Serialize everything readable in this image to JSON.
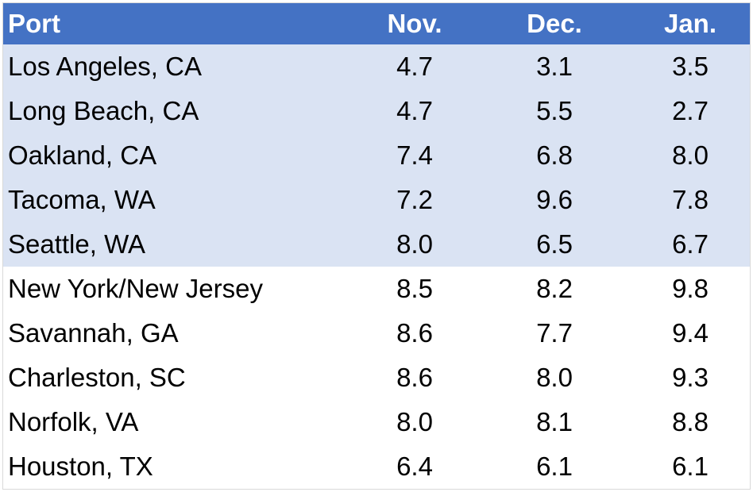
{
  "table": {
    "headers": [
      "Port",
      "Nov.",
      "Dec.",
      "Jan."
    ],
    "rows": [
      {
        "port": "Los Angeles, CA",
        "nov": "4.7",
        "dec": "3.1",
        "jan": "3.5"
      },
      {
        "port": "Long Beach, CA",
        "nov": "4.7",
        "dec": "5.5",
        "jan": "2.7"
      },
      {
        "port": "Oakland, CA",
        "nov": "7.4",
        "dec": "6.8",
        "jan": "8.0"
      },
      {
        "port": "Tacoma, WA",
        "nov": "7.2",
        "dec": "9.6",
        "jan": "7.8"
      },
      {
        "port": "Seattle, WA",
        "nov": "8.0",
        "dec": "6.5",
        "jan": "6.7"
      },
      {
        "port": "New York/New Jersey",
        "nov": "8.5",
        "dec": "8.2",
        "jan": "9.8"
      },
      {
        "port": "Savannah, GA",
        "nov": "8.6",
        "dec": "7.7",
        "jan": "9.4"
      },
      {
        "port": "Charleston, SC",
        "nov": "8.6",
        "dec": "8.0",
        "jan": "9.3"
      },
      {
        "port": "Norfolk, VA",
        "nov": "8.0",
        "dec": "8.1",
        "jan": "8.8"
      },
      {
        "port": "Houston, TX",
        "nov": "6.4",
        "dec": "6.1",
        "jan": "6.1"
      }
    ]
  },
  "colors": {
    "header_bg": "#4472c4",
    "header_text": "#ffffff",
    "highlight_row_bg": "#dae3f3",
    "body_text": "#000000"
  }
}
